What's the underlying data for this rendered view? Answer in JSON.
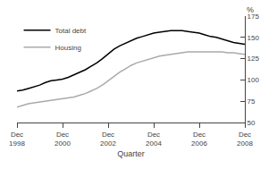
{
  "chart_data": {
    "type": "line",
    "xlabel": "Quarter",
    "ylabel": "%",
    "categories": [
      "Dec\n1998",
      null,
      null,
      null,
      null,
      null,
      null,
      null,
      "Dec\n2000",
      null,
      null,
      null,
      null,
      null,
      null,
      null,
      "Dec\n2002",
      null,
      null,
      null,
      null,
      null,
      null,
      null,
      "Dec\n2004",
      null,
      null,
      null,
      null,
      null,
      null,
      null,
      "Dec\n2006",
      null,
      null,
      null,
      null,
      null,
      null,
      null,
      "Dec\n2008"
    ],
    "series": [
      {
        "name": "Total debt",
        "color": "#000000",
        "values": [
          87,
          88,
          90,
          92,
          94,
          97,
          99,
          100,
          101,
          103,
          106,
          109,
          112,
          116,
          120,
          125,
          131,
          136,
          140,
          143,
          146,
          149,
          151,
          153,
          155,
          156,
          157,
          158,
          158,
          158,
          157,
          156,
          155,
          153,
          151,
          150,
          148,
          146,
          144,
          143,
          142
        ]
      },
      {
        "name": "Housing",
        "color": "#aaaaaa",
        "values": [
          68,
          70,
          72,
          73,
          74,
          75,
          76,
          77,
          78,
          79,
          80,
          82,
          84,
          87,
          90,
          94,
          99,
          104,
          109,
          113,
          117,
          120,
          122,
          124,
          126,
          128,
          129,
          130,
          131,
          132,
          133,
          133,
          133,
          133,
          133,
          133,
          133,
          132,
          132,
          131,
          130
        ]
      }
    ],
    "ylim": [
      50,
      175
    ],
    "yticks": [
      50,
      75,
      100,
      125,
      150,
      175
    ],
    "grid": false,
    "legend": "upper left"
  }
}
